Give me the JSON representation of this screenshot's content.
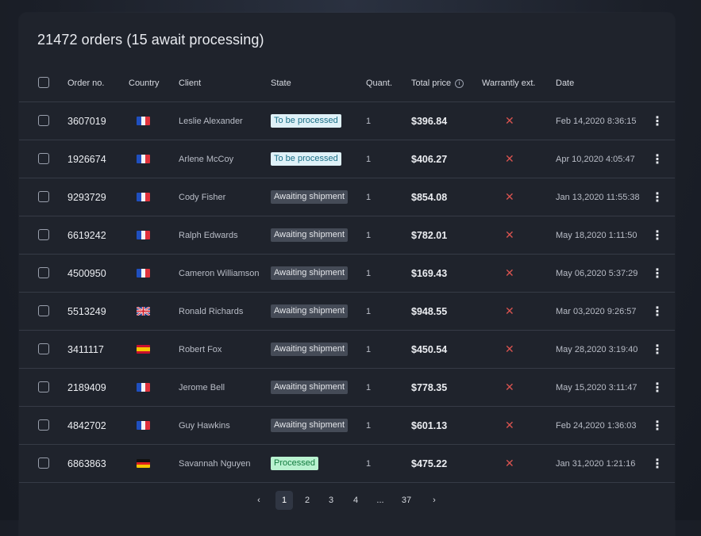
{
  "title": "21472 orders (15 await processing)",
  "columns": {
    "order_no": "Order no.",
    "country": "Country",
    "client": "Client",
    "state": "State",
    "quantity": "Quant.",
    "total_price": "Total price",
    "warranty": "Warrantly ext.",
    "date": "Date"
  },
  "colors": {
    "panel": "#1f232c",
    "divider": "#363b46",
    "x_mark": "#d9534f",
    "badge_to_be_processed": "#dff1f8",
    "badge_awaiting": "#454b57",
    "badge_processed": "#b9f2d0"
  },
  "rows": [
    {
      "order": "3607019",
      "country": "fr-flag-icon",
      "client": "Leslie Alexander",
      "state": "To be processed",
      "state_kind": "tobe",
      "quantity": "1",
      "price": "$396.84",
      "warranty": "✕",
      "date": "Feb 14,2020 8:36:15"
    },
    {
      "order": "1926674",
      "country": "fr-flag-icon",
      "client": "Arlene McCoy",
      "state": "To be processed",
      "state_kind": "tobe",
      "quantity": "1",
      "price": "$406.27",
      "warranty": "✕",
      "date": "Apr 10,2020 4:05:47"
    },
    {
      "order": "9293729",
      "country": "fr-flag-icon",
      "client": "Cody Fisher",
      "state": "Awaiting shipment",
      "state_kind": "await",
      "quantity": "1",
      "price": "$854.08",
      "warranty": "✕",
      "date": "Jan 13,2020 11:55:38"
    },
    {
      "order": "6619242",
      "country": "fr-flag-icon",
      "client": "Ralph Edwards",
      "state": "Awaiting shipment",
      "state_kind": "await",
      "quantity": "1",
      "price": "$782.01",
      "warranty": "✕",
      "date": "May 18,2020 1:11:50"
    },
    {
      "order": "4500950",
      "country": "fr-flag-icon",
      "client": "Cameron Williamson",
      "state": "Awaiting shipment",
      "state_kind": "await",
      "quantity": "1",
      "price": "$169.43",
      "warranty": "✕",
      "date": "May 06,2020 5:37:29"
    },
    {
      "order": "5513249",
      "country": "uk-flag-icon",
      "client": "Ronald Richards",
      "state": "Awaiting shipment",
      "state_kind": "await",
      "quantity": "1",
      "price": "$948.55",
      "warranty": "✕",
      "date": "Mar 03,2020 9:26:57"
    },
    {
      "order": "3411117",
      "country": "es-flag-icon",
      "client": "Robert Fox",
      "state": "Awaiting shipment",
      "state_kind": "await",
      "quantity": "1",
      "price": "$450.54",
      "warranty": "✕",
      "date": "May 28,2020 3:19:40"
    },
    {
      "order": "2189409",
      "country": "fr-flag-icon",
      "client": "Jerome Bell",
      "state": "Awaiting shipment",
      "state_kind": "await",
      "quantity": "1",
      "price": "$778.35",
      "warranty": "✕",
      "date": "May 15,2020 3:11:47"
    },
    {
      "order": "4842702",
      "country": "fr-flag-icon",
      "client": "Guy Hawkins",
      "state": "Awaiting shipment",
      "state_kind": "await",
      "quantity": "1",
      "price": "$601.13",
      "warranty": "✕",
      "date": "Feb 24,2020 1:36:03"
    },
    {
      "order": "6863863",
      "country": "de-flag-icon",
      "client": "Savannah Nguyen",
      "state": "Processed",
      "state_kind": "proc",
      "quantity": "1",
      "price": "$475.22",
      "warranty": "✕",
      "date": "Jan 31,2020 1:21:16"
    }
  ],
  "pagination": {
    "prev": "‹",
    "pages": [
      "1",
      "2",
      "3",
      "4",
      "...",
      "37"
    ],
    "active_page": "1",
    "next": "›"
  }
}
